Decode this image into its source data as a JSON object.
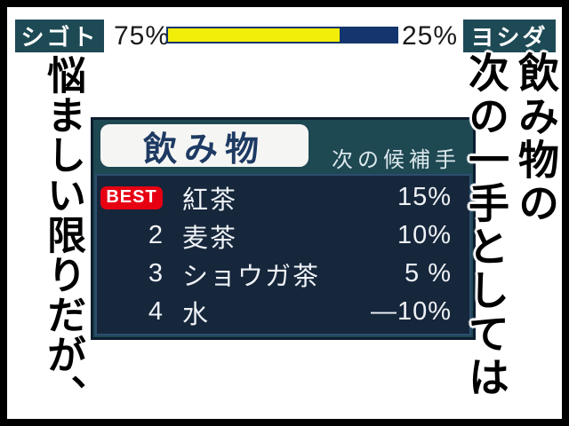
{
  "colors": {
    "badge_teal": "#1d4a55",
    "eval_yellow": "#f2ee0a",
    "eval_navy": "#14356d",
    "panel_bg": "#1e4852",
    "panel_border": "#0c1e30",
    "list_bg": "#16263b",
    "list_border": "#2d4e71",
    "best_red": "#e60012",
    "title_text": "#1e3a63"
  },
  "scoreboard": {
    "left_name": "シゴト",
    "right_name": "ヨシダ",
    "left_percent_label": "75%",
    "right_percent_label": "25%",
    "left_value": 75,
    "right_value": 25
  },
  "captions": {
    "left_vertical": "悩ましい限りだが、",
    "right_vertical_line1": "飲み物の",
    "right_vertical_line2": "次の一手としては"
  },
  "panel": {
    "title": "飲み物",
    "subtitle": "次の候補手",
    "rows": [
      {
        "rank": "BEST",
        "name": "紅茶",
        "value": "15%"
      },
      {
        "rank": "2",
        "name": "麦茶",
        "value": "10%"
      },
      {
        "rank": "3",
        "name": "ショウガ茶",
        "value": "5 %"
      },
      {
        "rank": "4",
        "name": "水",
        "value": "—10%"
      }
    ]
  }
}
